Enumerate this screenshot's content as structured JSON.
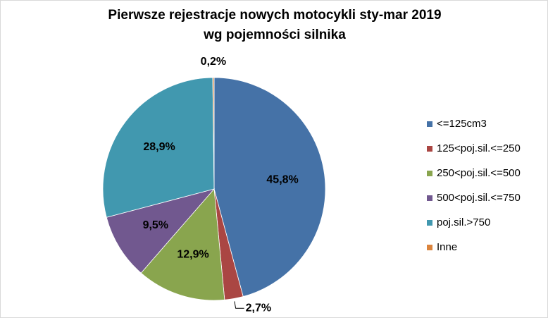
{
  "chart_data": {
    "type": "pie",
    "title": [
      "Pierwsze rejestracje nowych motocykli sty-mar 2019",
      "wg pojemności silnika"
    ],
    "categories": [
      "<=125cm3",
      "125<poj.sil.<=250",
      "250<poj.sil.<=500",
      "500<poj.sil.<=750",
      "poj.sil.>750",
      "Inne"
    ],
    "values": [
      45.8,
      2.7,
      12.9,
      9.5,
      28.9,
      0.2
    ],
    "value_labels": [
      "45,8%",
      "2,7%",
      "12,9%",
      "9,5%",
      "28,9%",
      "0,2%"
    ],
    "colors": [
      "#4572a7",
      "#aa4643",
      "#89a54e",
      "#71588f",
      "#4198af",
      "#db843d"
    ],
    "legend": "right"
  }
}
